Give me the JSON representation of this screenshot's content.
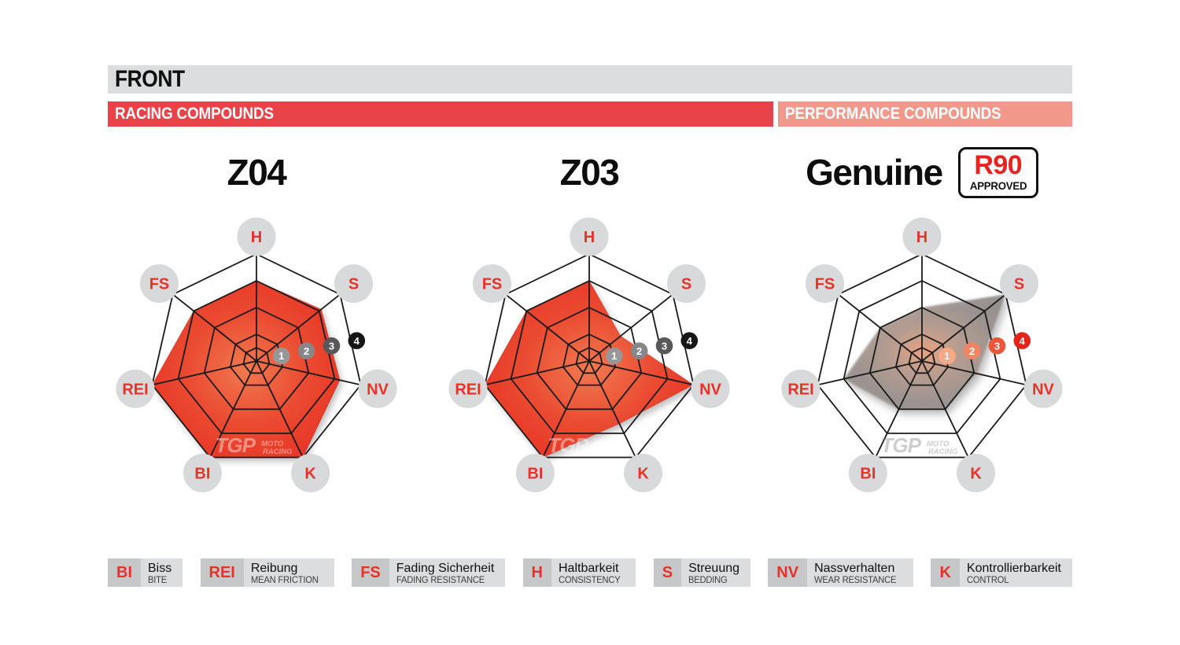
{
  "header": {
    "title": "FRONT",
    "title_bar_bg": "#dcddde",
    "left_band": {
      "label": "RACING COMPOUNDS",
      "bg": "#e84349",
      "text_color": "#ffffff"
    },
    "right_band": {
      "label": "PERFORMANCE COMPOUNDS",
      "bg": "#f2988a",
      "text_color": "#ffffff"
    }
  },
  "radar_style": {
    "grid_color": "#1a1a1a",
    "rings": [
      0.5,
      1,
      2,
      3,
      4
    ],
    "ball_color": "#d8d9da",
    "axis_label_color": "#e6332a",
    "watermark": {
      "logo": "TGP",
      "line1": "MOTO",
      "line2": "RACING"
    }
  },
  "chart_data": [
    {
      "type": "radar",
      "title": "Z04",
      "compound_group": "RACING COMPOUNDS",
      "axes": [
        "H",
        "S",
        "NV",
        "K",
        "BI",
        "REI",
        "FS"
      ],
      "scale": {
        "min": 0,
        "max": 4
      },
      "scale_markers": [
        "1",
        "2",
        "3",
        "4"
      ],
      "values": {
        "H": 3.0,
        "S": 3.1,
        "NV": 3.2,
        "K": 4.0,
        "BI": 4.0,
        "REI": 4.0,
        "FS": 3.0
      },
      "fill_gradient": [
        "#f1794f",
        "#ea4a30",
        "#e73327"
      ],
      "fill_opacity": 1,
      "soft": false,
      "marker_colors": [
        "#97979a",
        "#87878a",
        "#58585b",
        "#161616"
      ],
      "watermark_color": "rgba(255,255,255,0.42)"
    },
    {
      "type": "radar",
      "title": "Z03",
      "compound_group": "RACING COMPOUNDS",
      "axes": [
        "H",
        "S",
        "NV",
        "K",
        "BI",
        "REI",
        "FS"
      ],
      "scale": {
        "min": 0,
        "max": 4
      },
      "scale_markers": [
        "1",
        "2",
        "3",
        "4"
      ],
      "values": {
        "H": 3.0,
        "S": 1.5,
        "NV": 4.0,
        "K": 2.6,
        "BI": 4.0,
        "REI": 4.0,
        "FS": 3.0
      },
      "fill_gradient": [
        "#f1794f",
        "#ea4a30",
        "#e73327"
      ],
      "fill_opacity": 1,
      "soft": false,
      "marker_colors": [
        "#97979a",
        "#87878a",
        "#58585b",
        "#161616"
      ],
      "watermark_color": "rgba(255,255,255,0.42)"
    },
    {
      "type": "radar",
      "title": "Genuine",
      "compound_group": "PERFORMANCE COMPOUNDS",
      "badge": {
        "line1": "R90",
        "line2": "APPROVED"
      },
      "axes": [
        "H",
        "S",
        "NV",
        "K",
        "BI",
        "REI",
        "FS"
      ],
      "scale": {
        "min": 0,
        "max": 4
      },
      "scale_markers": [
        "1",
        "2",
        "3",
        "4"
      ],
      "values": {
        "H": 2.0,
        "S": 4.0,
        "NV": 2.1,
        "K": 2.0,
        "BI": 2.0,
        "REI": 3.0,
        "FS": 2.0
      },
      "fill_gradient": [
        "#ec9f7e",
        "#b59a8d",
        "#9a918d",
        "#8c8a88"
      ],
      "fill_opacity": 0.93,
      "soft": true,
      "marker_colors": [
        "#f6a888",
        "#f18463",
        "#eb5737",
        "#e2241b"
      ],
      "watermark_color": "rgba(135,135,135,0.42)"
    }
  ],
  "legend": [
    {
      "abbr": "BI",
      "de": "Biss",
      "en": "BITE"
    },
    {
      "abbr": "REI",
      "de": "Reibung",
      "en": "MEAN FRICTION"
    },
    {
      "abbr": "FS",
      "de": "Fading Sicherheit",
      "en": "FADING RESISTANCE"
    },
    {
      "abbr": "H",
      "de": "Haltbarkeit",
      "en": "CONSISTENCY"
    },
    {
      "abbr": "S",
      "de": "Streuung",
      "en": "BEDDING"
    },
    {
      "abbr": "NV",
      "de": "Nassverhalten",
      "en": "WEAR RESISTANCE"
    },
    {
      "abbr": "K",
      "de": "Kontrollierbarkeit",
      "en": "CONTROL"
    }
  ]
}
